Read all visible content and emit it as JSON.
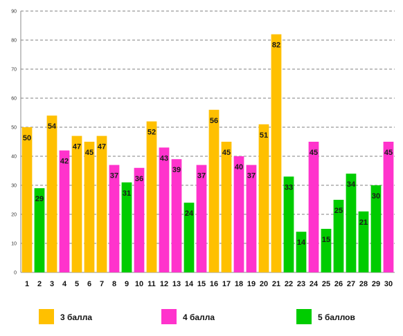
{
  "chart_data": {
    "type": "bar",
    "title": "",
    "xlabel": "",
    "ylabel": "",
    "ylim": [
      0,
      90
    ],
    "y_ticks": [
      0,
      10,
      20,
      30,
      40,
      50,
      60,
      70,
      80,
      90
    ],
    "grid": "horizontal dashed",
    "legend_placement": "bottom",
    "categories": [
      "1",
      "2",
      "3",
      "4",
      "5",
      "6",
      "7",
      "8",
      "9",
      "10",
      "11",
      "12",
      "13",
      "14",
      "15",
      "16",
      "17",
      "18",
      "19",
      "20",
      "21",
      "22",
      "23",
      "24",
      "25",
      "26",
      "27",
      "28",
      "29",
      "30"
    ],
    "values": [
      50,
      29,
      54,
      42,
      47,
      45,
      47,
      37,
      31,
      36,
      52,
      43,
      39,
      24,
      37,
      56,
      45,
      40,
      37,
      51,
      82,
      33,
      14,
      45,
      15,
      25,
      34,
      21,
      30,
      45
    ],
    "bar_groups": [
      "3",
      "5",
      "3",
      "4",
      "3",
      "3",
      "3",
      "4",
      "5",
      "4",
      "3",
      "4",
      "4",
      "5",
      "4",
      "3",
      "3",
      "4",
      "4",
      "3",
      "3",
      "5",
      "5",
      "4",
      "5",
      "5",
      "5",
      "5",
      "5",
      "4"
    ],
    "series": [
      {
        "key": "3",
        "name": "3 балла",
        "color": "#FFC000"
      },
      {
        "key": "4",
        "name": "4 балла",
        "color": "#FF33CC"
      },
      {
        "key": "5",
        "name": "5 баллов",
        "color": "#00CC00"
      }
    ]
  }
}
